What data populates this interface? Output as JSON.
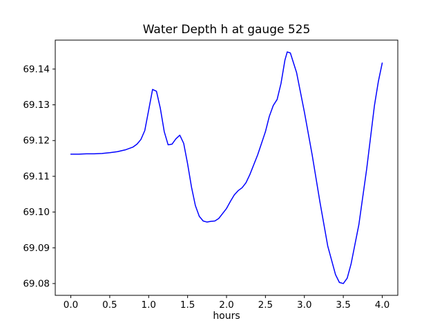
{
  "figure": {
    "title": "Water Depth h at gauge 525",
    "xlabel": "hours"
  },
  "chart_data": {
    "type": "line",
    "title": "Water Depth h at gauge 525",
    "xlabel": "hours",
    "ylabel": "",
    "grid": false,
    "legend": "none",
    "line_color": "#0000ff",
    "xlim": [
      -0.2,
      4.2
    ],
    "ylim": [
      69.0767,
      69.1481
    ],
    "xticks": [
      0.0,
      0.5,
      1.0,
      1.5,
      2.0,
      2.5,
      3.0,
      3.5,
      4.0
    ],
    "yticks": [
      69.08,
      69.09,
      69.1,
      69.11,
      69.12,
      69.13,
      69.14
    ],
    "series": [
      {
        "name": "water depth h",
        "color": "#0000ff",
        "x": [
          0.0,
          0.1,
          0.2,
          0.3,
          0.4,
          0.5,
          0.6,
          0.7,
          0.8,
          0.85,
          0.9,
          0.95,
          1.0,
          1.05,
          1.1,
          1.15,
          1.2,
          1.25,
          1.3,
          1.35,
          1.4,
          1.45,
          1.5,
          1.55,
          1.6,
          1.65,
          1.7,
          1.75,
          1.8,
          1.85,
          1.9,
          1.95,
          2.0,
          2.05,
          2.1,
          2.15,
          2.2,
          2.25,
          2.3,
          2.4,
          2.5,
          2.55,
          2.6,
          2.65,
          2.7,
          2.75,
          2.78,
          2.82,
          2.9,
          3.0,
          3.1,
          3.2,
          3.3,
          3.4,
          3.45,
          3.5,
          3.55,
          3.6,
          3.7,
          3.8,
          3.9,
          3.95,
          4.0
        ],
        "y": [
          69.1162,
          69.1162,
          69.1163,
          69.1163,
          69.1164,
          69.1166,
          69.1169,
          69.1174,
          69.1182,
          69.119,
          69.1203,
          69.1228,
          69.1285,
          69.1343,
          69.1338,
          69.129,
          69.1225,
          69.1188,
          69.119,
          69.1205,
          69.1215,
          69.1192,
          69.1135,
          69.107,
          69.1018,
          69.0988,
          69.0975,
          69.0972,
          69.0974,
          69.0975,
          69.0982,
          69.0996,
          69.101,
          69.103,
          69.1048,
          69.106,
          69.1068,
          69.1082,
          69.1105,
          69.116,
          69.1225,
          69.1268,
          69.1298,
          69.1315,
          69.136,
          69.1425,
          69.1448,
          69.1445,
          69.139,
          69.128,
          69.116,
          69.1028,
          69.0905,
          69.0825,
          69.0803,
          69.08,
          69.0815,
          69.0855,
          69.0965,
          69.112,
          69.1298,
          69.1365,
          69.1417
        ]
      }
    ]
  }
}
